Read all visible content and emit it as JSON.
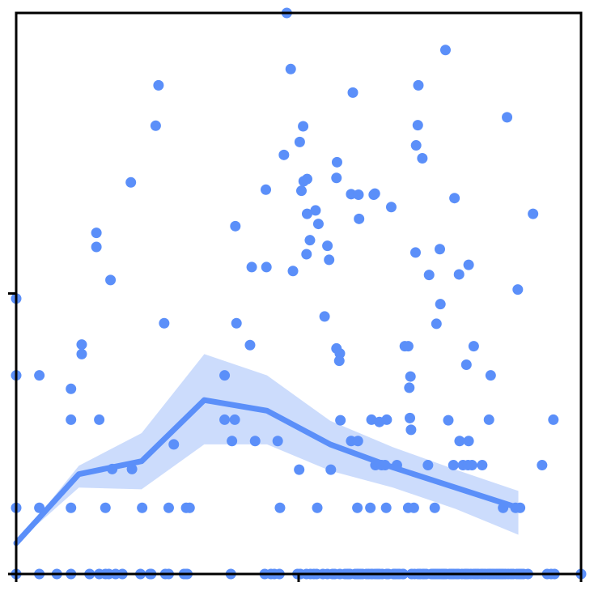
{
  "chart_data": {
    "type": "scatter",
    "title": "",
    "xlabel": "",
    "ylabel": "",
    "grid": false,
    "legend": "none",
    "xlim": [
      0,
      1.0
    ],
    "ylim": [
      0,
      1.0
    ],
    "colors": {
      "points": "#5b8ff9",
      "trend": "#5b8ff9",
      "band": "#c3d6fb",
      "axes": "#000000"
    },
    "points": [
      [
        0.0,
        0.491
      ],
      [
        0.0,
        0.354
      ],
      [
        0.0,
        0.118
      ],
      [
        0.0,
        0.0
      ],
      [
        0.041,
        0.354
      ],
      [
        0.041,
        0.118
      ],
      [
        0.041,
        0.0
      ],
      [
        0.072,
        0.0
      ],
      [
        0.097,
        0.0
      ],
      [
        0.097,
        0.118
      ],
      [
        0.097,
        0.33
      ],
      [
        0.097,
        0.275
      ],
      [
        0.116,
        0.392
      ],
      [
        0.116,
        0.409
      ],
      [
        0.13,
        0.0
      ],
      [
        0.147,
        0.275
      ],
      [
        0.142,
        0.608
      ],
      [
        0.142,
        0.583
      ],
      [
        0.147,
        0.0
      ],
      [
        0.164,
        0.0
      ],
      [
        0.158,
        0.118
      ],
      [
        0.158,
        0.0
      ],
      [
        0.167,
        0.524
      ],
      [
        0.17,
        0.187
      ],
      [
        0.176,
        0.0
      ],
      [
        0.188,
        0.0
      ],
      [
        0.203,
        0.698
      ],
      [
        0.205,
        0.187
      ],
      [
        0.22,
        0.0
      ],
      [
        0.223,
        0.118
      ],
      [
        0.237,
        0.0
      ],
      [
        0.239,
        0.0
      ],
      [
        0.247,
        0.799
      ],
      [
        0.252,
        0.871
      ],
      [
        0.262,
        0.447
      ],
      [
        0.264,
        0.0
      ],
      [
        0.27,
        0.0
      ],
      [
        0.27,
        0.118
      ],
      [
        0.279,
        0.231
      ],
      [
        0.301,
        0.118
      ],
      [
        0.301,
        0.0
      ],
      [
        0.297,
        0.0
      ],
      [
        0.307,
        0.118
      ],
      [
        0.303,
        0.0
      ],
      [
        0.369,
        0.354
      ],
      [
        0.369,
        0.275
      ],
      [
        0.38,
        0.0
      ],
      [
        0.382,
        0.237
      ],
      [
        0.387,
        0.275
      ],
      [
        0.388,
        0.62
      ],
      [
        0.39,
        0.447
      ],
      [
        0.414,
        0.408
      ],
      [
        0.417,
        0.547
      ],
      [
        0.423,
        0.237
      ],
      [
        0.442,
        0.685
      ],
      [
        0.44,
        0.0
      ],
      [
        0.443,
        0.547
      ],
      [
        0.451,
        0.0
      ],
      [
        0.457,
        0.0
      ],
      [
        0.463,
        0.237
      ],
      [
        0.466,
        0.0
      ],
      [
        0.467,
        0.118
      ],
      [
        0.474,
        0.747
      ],
      [
        0.479,
        1.0
      ],
      [
        0.486,
        0.9
      ],
      [
        0.49,
        0.54
      ],
      [
        0.498,
        0.0
      ],
      [
        0.503,
        0.0
      ],
      [
        0.501,
        0.186
      ],
      [
        0.502,
        0.77
      ],
      [
        0.505,
        0.683
      ],
      [
        0.508,
        0.798
      ],
      [
        0.509,
        0.7
      ],
      [
        0.514,
        0.0
      ],
      [
        0.515,
        0.704
      ],
      [
        0.514,
        0.57
      ],
      [
        0.515,
        0.642
      ],
      [
        0.52,
        0.595
      ],
      [
        0.521,
        0.0
      ],
      [
        0.527,
        0.0
      ],
      [
        0.532,
        0.0
      ],
      [
        0.533,
        0.118
      ],
      [
        0.53,
        0.648
      ],
      [
        0.535,
        0.624
      ],
      [
        0.543,
        0.0
      ],
      [
        0.546,
        0.459
      ],
      [
        0.551,
        0.0
      ],
      [
        0.551,
        0.585
      ],
      [
        0.554,
        0.56
      ],
      [
        0.56,
        0.0
      ],
      [
        0.557,
        0.186
      ],
      [
        0.564,
        0.0
      ],
      [
        0.567,
        0.402
      ],
      [
        0.567,
        0.706
      ],
      [
        0.568,
        0.734
      ],
      [
        0.573,
        0.393
      ],
      [
        0.573,
        0.0
      ],
      [
        0.572,
        0.38
      ],
      [
        0.574,
        0.274
      ],
      [
        0.582,
        0.0
      ],
      [
        0.586,
        0.0
      ],
      [
        0.589,
        0.0
      ],
      [
        0.593,
        0.237
      ],
      [
        0.591,
        0.0
      ],
      [
        0.593,
        0.677
      ],
      [
        0.596,
        0.858
      ],
      [
        0.6,
        0.0
      ],
      [
        0.604,
        0.0
      ],
      [
        0.605,
        0.0
      ],
      [
        0.605,
        0.237
      ],
      [
        0.604,
        0.118
      ],
      [
        0.606,
        0.676
      ],
      [
        0.607,
        0.633
      ],
      [
        0.609,
        0.0
      ],
      [
        0.613,
        0.0
      ],
      [
        0.62,
        0.0
      ],
      [
        0.624,
        0.0
      ],
      [
        0.629,
        0.0
      ],
      [
        0.63,
        0.0
      ],
      [
        0.629,
        0.275
      ],
      [
        0.627,
        0.118
      ],
      [
        0.633,
        0.676
      ],
      [
        0.635,
        0.678
      ],
      [
        0.635,
        0.0
      ],
      [
        0.636,
        0.194
      ],
      [
        0.643,
        0.271
      ],
      [
        0.643,
        0.0
      ],
      [
        0.639,
        0.0
      ],
      [
        0.641,
        0.0
      ],
      [
        0.64,
        0.0
      ],
      [
        0.647,
        0.194
      ],
      [
        0.648,
        0.0
      ],
      [
        0.653,
        0.194
      ],
      [
        0.656,
        0.0
      ],
      [
        0.655,
        0.118
      ],
      [
        0.656,
        0.275
      ],
      [
        0.657,
        0.0
      ],
      [
        0.659,
        0.0
      ],
      [
        0.664,
        0.654
      ],
      [
        0.668,
        0.0
      ],
      [
        0.669,
        0.0
      ],
      [
        0.672,
        0.0
      ],
      [
        0.676,
        0.0
      ],
      [
        0.674,
        0.194
      ],
      [
        0.679,
        0.0
      ],
      [
        0.685,
        0.0
      ],
      [
        0.685,
        0.0
      ],
      [
        0.688,
        0.406
      ],
      [
        0.694,
        0.406
      ],
      [
        0.694,
        0.118
      ],
      [
        0.698,
        0.352
      ],
      [
        0.697,
        0.278
      ],
      [
        0.696,
        0.332
      ],
      [
        0.699,
        0.257
      ],
      [
        0.7,
        0.0
      ],
      [
        0.704,
        0.118
      ],
      [
        0.705,
        0.0
      ],
      [
        0.711,
        0.0
      ],
      [
        0.714,
        0.0
      ],
      [
        0.707,
        0.573
      ],
      [
        0.708,
        0.764
      ],
      [
        0.711,
        0.8
      ],
      [
        0.712,
        0.871
      ],
      [
        0.715,
        0.0
      ],
      [
        0.719,
        0.741
      ],
      [
        0.72,
        0.0
      ],
      [
        0.722,
        0.0
      ],
      [
        0.726,
        0.0
      ],
      [
        0.729,
        0.194
      ],
      [
        0.731,
        0.533
      ],
      [
        0.735,
        0.0
      ],
      [
        0.738,
        0.0
      ],
      [
        0.74,
        0.0
      ],
      [
        0.741,
        0.118
      ],
      [
        0.743,
        0.0
      ],
      [
        0.744,
        0.446
      ],
      [
        0.746,
        0.0
      ],
      [
        0.749,
        0.0
      ],
      [
        0.75,
        0.579
      ],
      [
        0.751,
        0.481
      ],
      [
        0.753,
        0.0
      ],
      [
        0.756,
        0.0
      ],
      [
        0.757,
        0.0
      ],
      [
        0.758,
        0.0
      ],
      [
        0.761,
        0.0
      ],
      [
        0.76,
        0.934
      ],
      [
        0.765,
        0.274
      ],
      [
        0.767,
        0.0
      ],
      [
        0.77,
        0.0
      ],
      [
        0.772,
        0.0
      ],
      [
        0.775,
        0.0
      ],
      [
        0.774,
        0.194
      ],
      [
        0.776,
        0.67
      ],
      [
        0.779,
        0.0
      ],
      [
        0.782,
        0.0
      ],
      [
        0.783,
        0.0
      ],
      [
        0.784,
        0.534
      ],
      [
        0.785,
        0.237
      ],
      [
        0.789,
        0.0
      ],
      [
        0.791,
        0.194
      ],
      [
        0.794,
        0.0
      ],
      [
        0.796,
        0.0
      ],
      [
        0.797,
        0.0
      ],
      [
        0.797,
        0.373
      ],
      [
        0.8,
        0.0
      ],
      [
        0.801,
        0.237
      ],
      [
        0.8,
        0.194
      ],
      [
        0.801,
        0.551
      ],
      [
        0.805,
        0.0
      ],
      [
        0.807,
        0.194
      ],
      [
        0.81,
        0.0
      ],
      [
        0.81,
        0.406
      ],
      [
        0.813,
        0.0
      ],
      [
        0.816,
        0.0
      ],
      [
        0.818,
        0.0
      ],
      [
        0.823,
        0.0
      ],
      [
        0.825,
        0.194
      ],
      [
        0.826,
        0.0
      ],
      [
        0.83,
        0.0
      ],
      [
        0.835,
        0.0
      ],
      [
        0.837,
        0.275
      ],
      [
        0.838,
        0.0
      ],
      [
        0.84,
        0.0
      ],
      [
        0.84,
        0.354
      ],
      [
        0.843,
        0.0
      ],
      [
        0.846,
        0.0
      ],
      [
        0.85,
        0.0
      ],
      [
        0.853,
        0.0
      ],
      [
        0.856,
        0.0
      ],
      [
        0.859,
        0.0
      ],
      [
        0.862,
        0.0
      ],
      [
        0.862,
        0.118
      ],
      [
        0.866,
        0.0
      ],
      [
        0.869,
        0.814
      ],
      [
        0.871,
        0.0
      ],
      [
        0.876,
        0.0
      ],
      [
        0.88,
        0.0
      ],
      [
        0.884,
        0.118
      ],
      [
        0.886,
        0.0
      ],
      [
        0.888,
        0.507
      ],
      [
        0.89,
        0.0
      ],
      [
        0.892,
        0.118
      ],
      [
        0.894,
        0.0
      ],
      [
        0.898,
        0.0
      ],
      [
        0.906,
        0.0
      ],
      [
        0.915,
        0.642
      ],
      [
        0.931,
        0.194
      ],
      [
        0.94,
        0.0
      ],
      [
        0.947,
        0.0
      ],
      [
        0.953,
        0.0
      ],
      [
        0.951,
        0.275
      ],
      [
        1.0,
        0.0
      ]
    ],
    "trend": {
      "x": [
        0.0,
        0.111,
        0.222,
        0.333,
        0.444,
        0.556,
        0.667,
        0.778,
        0.889
      ],
      "y": [
        0.055,
        0.178,
        0.201,
        0.31,
        0.291,
        0.231,
        0.19,
        0.154,
        0.118
      ],
      "band_low": [
        0.055,
        0.154,
        0.151,
        0.231,
        0.231,
        0.184,
        0.154,
        0.116,
        0.07
      ],
      "band_high": [
        0.055,
        0.193,
        0.251,
        0.392,
        0.354,
        0.273,
        0.226,
        0.186,
        0.148
      ]
    }
  }
}
